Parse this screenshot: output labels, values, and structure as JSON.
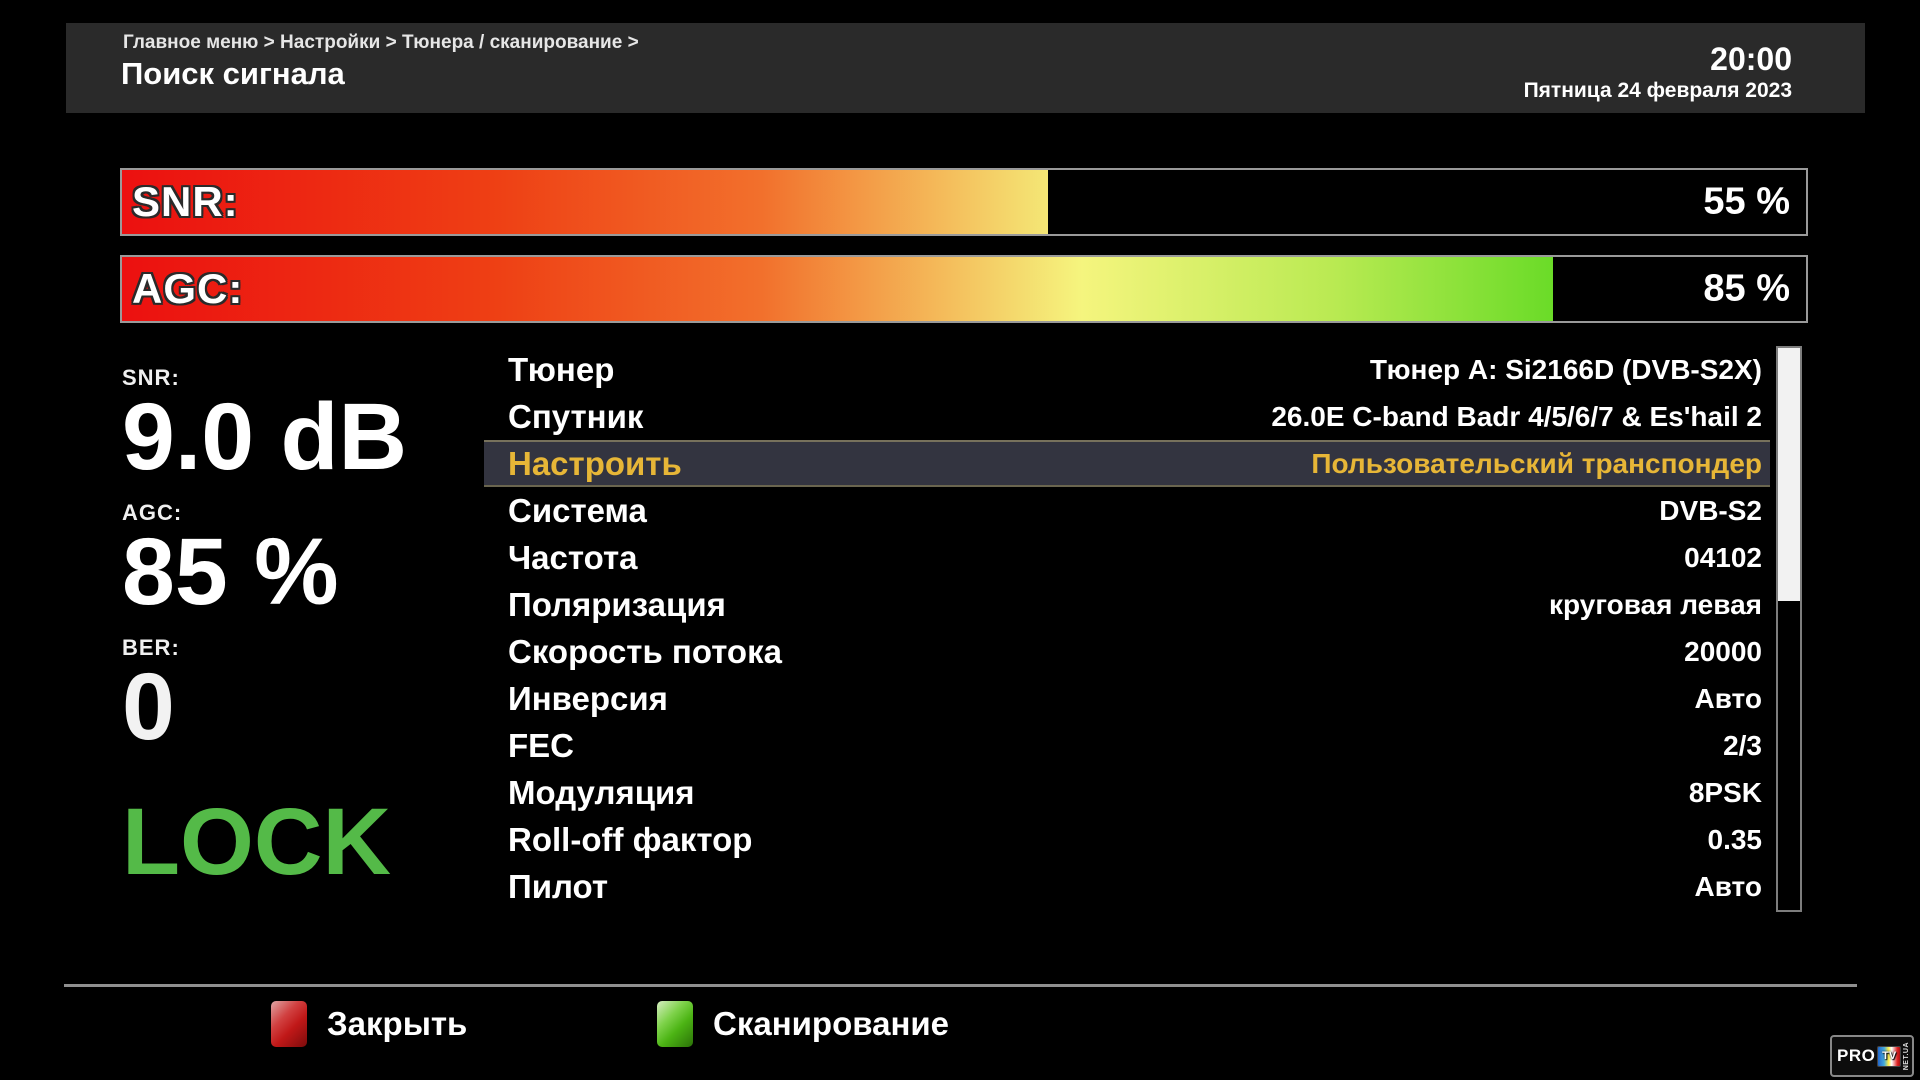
{
  "header": {
    "breadcrumb": "Главное меню > Настройки > Тюнера / сканирование >",
    "title": "Поиск сигнала",
    "time": "20:00",
    "date": "Пятница 24 февраля 2023"
  },
  "meters": [
    {
      "label": "SNR:",
      "value_text": "55 %",
      "percent": 55
    },
    {
      "label": "AGC:",
      "value_text": "85 %",
      "percent": 85
    }
  ],
  "stats": [
    {
      "label": "SNR:",
      "value": "9.0 dB",
      "color": "#ffffff"
    },
    {
      "label": "AGC:",
      "value": "85 %",
      "color": "#ffffff"
    },
    {
      "label": "BER:",
      "value": "0",
      "color": "#f2f2f2"
    },
    {
      "label": "",
      "value": "LOCK",
      "color": "#54ba48"
    }
  ],
  "menu": {
    "selected_index": 2,
    "items": [
      {
        "label": "Тюнер",
        "value": "Тюнер A: Si2166D (DVB-S2X)"
      },
      {
        "label": "Спутник",
        "value": "26.0E C-band Badr 4/5/6/7 & Es'hail 2"
      },
      {
        "label": "Настроить",
        "value": "Пользовательский транспондер"
      },
      {
        "label": "Система",
        "value": "DVB-S2"
      },
      {
        "label": "Частота",
        "value": "04102"
      },
      {
        "label": "Поляризация",
        "value": "круговая левая"
      },
      {
        "label": "Скорость потока",
        "value": "20000"
      },
      {
        "label": "Инверсия",
        "value": "Авто"
      },
      {
        "label": "FEC",
        "value": "2/3"
      },
      {
        "label": "Модуляция",
        "value": "8PSK"
      },
      {
        "label": "Roll-off фактор",
        "value": "0.35"
      },
      {
        "label": "Пилот",
        "value": "Авто"
      }
    ]
  },
  "scrollbar": {
    "thumb_percent": 45
  },
  "footer": {
    "buttons": [
      {
        "label": "Закрыть",
        "key_color": "red"
      },
      {
        "label": "Сканирование",
        "key_color": "green"
      }
    ]
  },
  "logo": {
    "pro": "PRO",
    "tv": "TV",
    "suffix": "NET.UA"
  },
  "colors": {
    "header_bg": "#2a2a2a",
    "selected_row_bg": "#333440",
    "selected_text": "#e7b637",
    "lock_green": "#54ba48",
    "meter_border": "#9a9a9a",
    "meter_gradient_start": "#ec1010",
    "meter_gradient_mid": "#f5f57e",
    "meter_gradient_end": "#46cc12",
    "close_key_red": "#c01818",
    "scan_key_green": "#4cb414"
  }
}
